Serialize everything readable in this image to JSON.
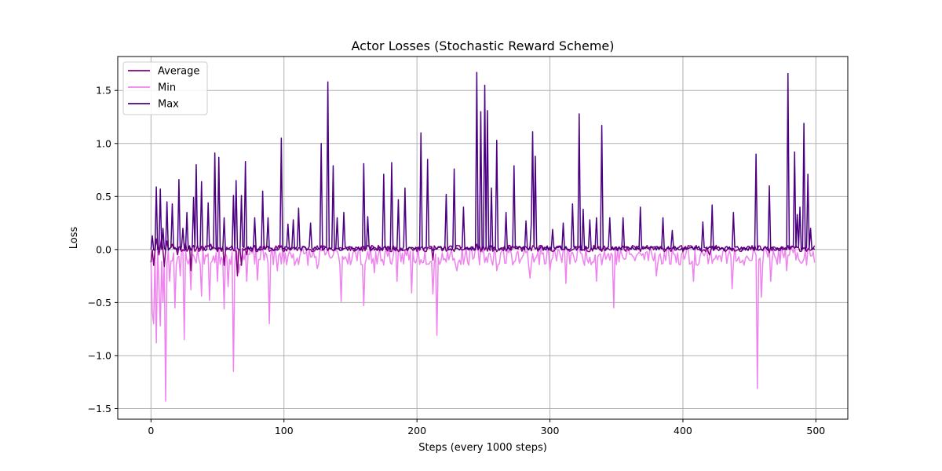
{
  "chart_data": {
    "type": "line",
    "title": "Actor Losses (Stochastic Reward Scheme)",
    "xlabel": "Steps (every 1000 steps)",
    "ylabel": "Loss",
    "xlim": [
      -25,
      524
    ],
    "ylim": [
      -1.6,
      1.82
    ],
    "xticks": [
      0,
      100,
      200,
      300,
      400,
      500
    ],
    "yticks": [
      -1.5,
      -1.0,
      -0.5,
      0.0,
      0.5,
      1.0,
      1.5
    ],
    "xtick_labels": [
      "0",
      "100",
      "200",
      "300",
      "400",
      "500"
    ],
    "ytick_labels": [
      "−1.5",
      "−1.0",
      "−0.5",
      "0.0",
      "0.5",
      "1.0",
      "1.5"
    ],
    "grid": true,
    "legend_position": "top-left",
    "n_points": 500,
    "series": [
      {
        "name": "Average",
        "color": "#800080",
        "base": 0.01,
        "noise": 0.03,
        "points": [
          [
            0,
            -0.12
          ],
          [
            2,
            -0.15
          ],
          [
            4,
            0.1
          ],
          [
            6,
            -0.05
          ],
          [
            8,
            0.12
          ],
          [
            10,
            -0.16
          ],
          [
            12,
            0.08
          ],
          [
            16,
            0.05
          ],
          [
            20,
            -0.05
          ],
          [
            26,
            0.06
          ],
          [
            30,
            -0.2
          ],
          [
            35,
            0.04
          ],
          [
            40,
            0.0
          ],
          [
            45,
            0.05
          ],
          [
            50,
            -0.02
          ],
          [
            55,
            -0.15
          ],
          [
            60,
            0.02
          ],
          [
            65,
            -0.25
          ],
          [
            68,
            -0.15
          ],
          [
            72,
            -0.05
          ],
          [
            80,
            -0.02
          ],
          [
            90,
            -0.01
          ],
          [
            100,
            -0.02
          ],
          [
            110,
            -0.01
          ],
          [
            120,
            0.0
          ],
          [
            132,
            0.02
          ],
          [
            150,
            -0.01
          ],
          [
            180,
            -0.02
          ],
          [
            200,
            -0.02
          ],
          [
            212,
            -0.1
          ],
          [
            220,
            0.0
          ],
          [
            245,
            0.05
          ],
          [
            260,
            -0.02
          ],
          [
            300,
            0.0
          ],
          [
            330,
            -0.02
          ],
          [
            360,
            0.0
          ],
          [
            400,
            -0.02
          ],
          [
            420,
            -0.05
          ],
          [
            455,
            0.0
          ],
          [
            465,
            -0.03
          ],
          [
            480,
            0.0
          ],
          [
            500,
            -0.01
          ]
        ]
      },
      {
        "name": "Min",
        "color": "#ee82ee",
        "base": -0.06,
        "noise": 0.09,
        "points": [
          [
            1,
            -0.6
          ],
          [
            2,
            -0.7
          ],
          [
            4,
            -0.88
          ],
          [
            6,
            -0.35
          ],
          [
            7,
            -0.72
          ],
          [
            9,
            -0.5
          ],
          [
            11,
            -1.43
          ],
          [
            14,
            -0.3
          ],
          [
            18,
            -0.55
          ],
          [
            22,
            -0.25
          ],
          [
            25,
            -0.85
          ],
          [
            30,
            -0.38
          ],
          [
            38,
            -0.44
          ],
          [
            44,
            -0.48
          ],
          [
            50,
            -0.3
          ],
          [
            55,
            -0.56
          ],
          [
            58,
            -0.35
          ],
          [
            62,
            -1.15
          ],
          [
            66,
            -0.22
          ],
          [
            72,
            -0.3
          ],
          [
            80,
            -0.29
          ],
          [
            89,
            -0.7
          ],
          [
            95,
            -0.2
          ],
          [
            108,
            -0.15
          ],
          [
            125,
            -0.18
          ],
          [
            143,
            -0.49
          ],
          [
            160,
            -0.53
          ],
          [
            168,
            -0.22
          ],
          [
            185,
            -0.3
          ],
          [
            196,
            -0.41
          ],
          [
            212,
            -0.42
          ],
          [
            215,
            -0.81
          ],
          [
            230,
            -0.2
          ],
          [
            260,
            -0.2
          ],
          [
            285,
            -0.27
          ],
          [
            300,
            -0.2
          ],
          [
            312,
            -0.32
          ],
          [
            335,
            -0.3
          ],
          [
            348,
            -0.55
          ],
          [
            380,
            -0.25
          ],
          [
            408,
            -0.3
          ],
          [
            437,
            -0.37
          ],
          [
            456,
            -1.31
          ],
          [
            459,
            -0.45
          ],
          [
            466,
            -0.3
          ],
          [
            478,
            -0.2
          ],
          [
            490,
            -0.12
          ],
          [
            500,
            -0.1
          ]
        ]
      },
      {
        "name": "Max",
        "color": "#4b0082",
        "base": 0.01,
        "noise": 0.02,
        "points": [
          [
            1,
            0.13
          ],
          [
            4,
            0.59
          ],
          [
            7,
            0.57
          ],
          [
            9,
            0.2
          ],
          [
            12,
            0.45
          ],
          [
            16,
            0.43
          ],
          [
            21,
            0.66
          ],
          [
            24,
            0.2
          ],
          [
            27,
            0.35
          ],
          [
            32,
            0.49
          ],
          [
            34,
            0.8
          ],
          [
            38,
            0.64
          ],
          [
            43,
            0.44
          ],
          [
            48,
            0.91
          ],
          [
            51,
            0.87
          ],
          [
            55,
            0.3
          ],
          [
            62,
            0.51
          ],
          [
            64,
            0.65
          ],
          [
            68,
            0.51
          ],
          [
            71,
            0.83
          ],
          [
            78,
            0.3
          ],
          [
            84,
            0.55
          ],
          [
            88,
            0.3
          ],
          [
            98,
            1.05
          ],
          [
            103,
            0.24
          ],
          [
            107,
            0.28
          ],
          [
            111,
            0.39
          ],
          [
            120,
            0.25
          ],
          [
            128,
            1.0
          ],
          [
            133,
            1.58
          ],
          [
            137,
            0.79
          ],
          [
            140,
            0.3
          ],
          [
            145,
            0.35
          ],
          [
            160,
            0.81
          ],
          [
            163,
            0.31
          ],
          [
            175,
            0.71
          ],
          [
            181,
            0.82
          ],
          [
            186,
            0.47
          ],
          [
            191,
            0.58
          ],
          [
            203,
            1.1
          ],
          [
            208,
            0.85
          ],
          [
            222,
            0.52
          ],
          [
            228,
            0.76
          ],
          [
            235,
            0.4
          ],
          [
            245,
            1.67
          ],
          [
            248,
            1.3
          ],
          [
            251,
            1.55
          ],
          [
            253,
            1.31
          ],
          [
            256,
            0.58
          ],
          [
            260,
            1.03
          ],
          [
            267,
            0.35
          ],
          [
            273,
            0.79
          ],
          [
            282,
            0.27
          ],
          [
            286,
            0.25
          ],
          [
            287,
            1.11
          ],
          [
            289,
            0.88
          ],
          [
            302,
            0.19
          ],
          [
            310,
            0.25
          ],
          [
            317,
            0.43
          ],
          [
            322,
            1.28
          ],
          [
            325,
            0.38
          ],
          [
            330,
            0.28
          ],
          [
            335,
            0.3
          ],
          [
            339,
            1.17
          ],
          [
            345,
            0.3
          ],
          [
            355,
            0.3
          ],
          [
            368,
            0.4
          ],
          [
            385,
            0.3
          ],
          [
            392,
            0.18
          ],
          [
            415,
            0.26
          ],
          [
            422,
            0.42
          ],
          [
            438,
            0.35
          ],
          [
            455,
            0.9
          ],
          [
            465,
            0.6
          ],
          [
            479,
            1.66
          ],
          [
            484,
            0.92
          ],
          [
            486,
            0.33
          ],
          [
            488,
            0.4
          ],
          [
            491,
            1.19
          ],
          [
            494,
            0.71
          ],
          [
            496,
            0.2
          ],
          [
            500,
            0.0
          ]
        ]
      }
    ]
  }
}
